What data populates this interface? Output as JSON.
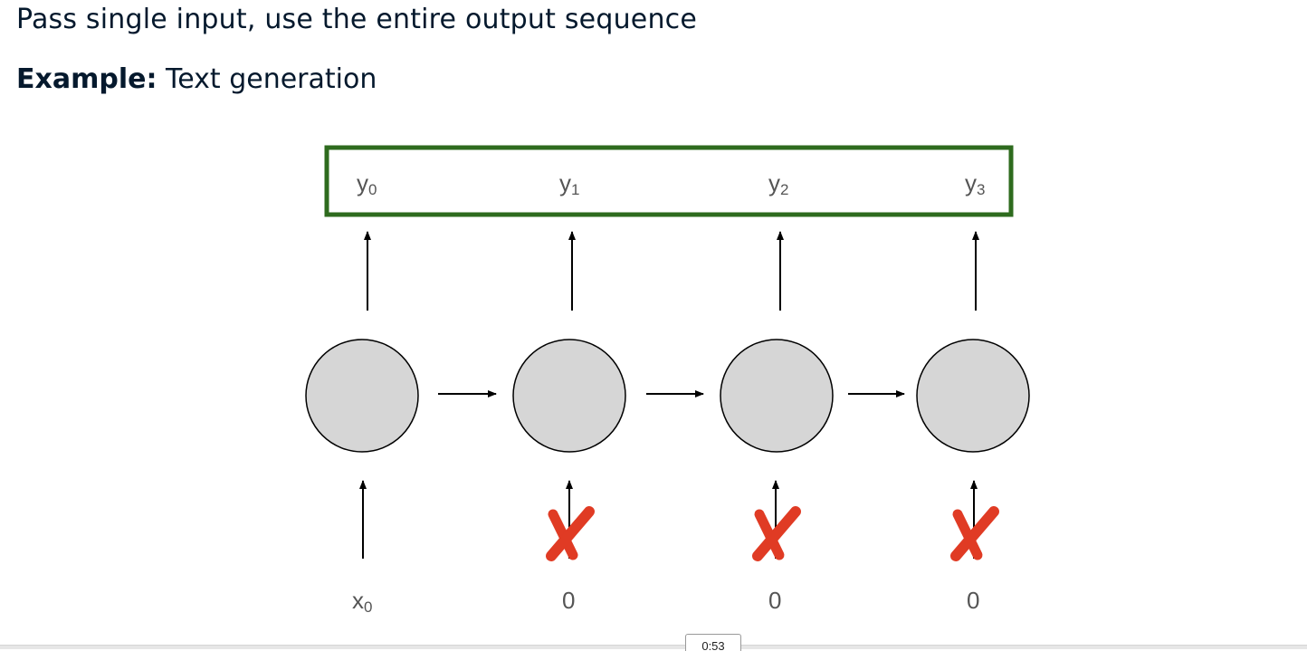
{
  "header": {
    "title": "Pass single input, use the entire output sequence",
    "example_label": "Example:",
    "example_value": "Text generation"
  },
  "diagram": {
    "outputs": [
      "y",
      "y",
      "y",
      "y"
    ],
    "output_subscripts": [
      "0",
      "1",
      "2",
      "3"
    ],
    "inputs": [
      "x",
      "0",
      "0",
      "0"
    ],
    "input_subscripts": [
      "0",
      "",
      "",
      ""
    ],
    "input_blocked": [
      false,
      true,
      true,
      true
    ],
    "colors": {
      "output_box": "#2e6b1e",
      "node_fill": "#d6d6d6",
      "cross": "#e03b24"
    }
  },
  "player": {
    "timestamp": "0:53"
  }
}
